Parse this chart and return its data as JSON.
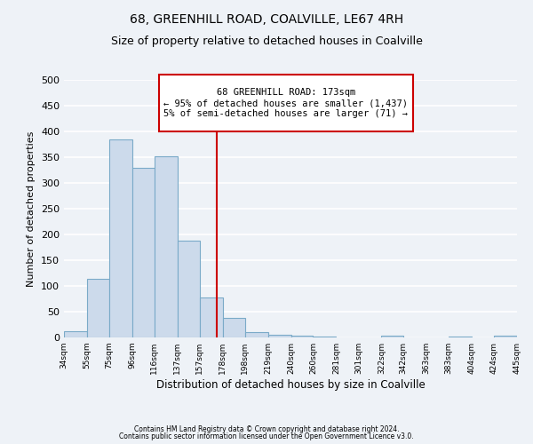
{
  "title": "68, GREENHILL ROAD, COALVILLE, LE67 4RH",
  "subtitle": "Size of property relative to detached houses in Coalville",
  "xlabel": "Distribution of detached houses by size in Coalville",
  "ylabel": "Number of detached properties",
  "bar_color": "#ccdaeb",
  "bar_edge_color": "#7aaac8",
  "bin_edges": [
    34,
    55,
    75,
    96,
    116,
    137,
    157,
    178,
    198,
    219,
    240,
    260,
    281,
    301,
    322,
    342,
    363,
    383,
    404,
    424,
    445
  ],
  "bar_heights": [
    12,
    114,
    384,
    330,
    352,
    188,
    77,
    38,
    11,
    6,
    4,
    1,
    0,
    0,
    3,
    0,
    0,
    2,
    0,
    3
  ],
  "vline_x": 173,
  "vline_color": "#cc0000",
  "annotation_title": "68 GREENHILL ROAD: 173sqm",
  "annotation_line1": "← 95% of detached houses are smaller (1,437)",
  "annotation_line2": "5% of semi-detached houses are larger (71) →",
  "annotation_box_edgecolor": "#cc0000",
  "annotation_box_facecolor": "#ffffff",
  "ytick_values": [
    0,
    50,
    100,
    150,
    200,
    250,
    300,
    350,
    400,
    450,
    500
  ],
  "ylim": [
    0,
    500
  ],
  "tick_labels": [
    "34sqm",
    "55sqm",
    "75sqm",
    "96sqm",
    "116sqm",
    "137sqm",
    "157sqm",
    "178sqm",
    "198sqm",
    "219sqm",
    "240sqm",
    "260sqm",
    "281sqm",
    "301sqm",
    "322sqm",
    "342sqm",
    "363sqm",
    "383sqm",
    "404sqm",
    "424sqm",
    "445sqm"
  ],
  "footer_line1": "Contains HM Land Registry data © Crown copyright and database right 2024.",
  "footer_line2": "Contains public sector information licensed under the Open Government Licence v3.0.",
  "background_color": "#eef2f7",
  "grid_color": "#ffffff",
  "title_fontsize": 10,
  "subtitle_fontsize": 9,
  "ylabel_fontsize": 8,
  "xlabel_fontsize": 8.5,
  "ytick_fontsize": 8,
  "xtick_fontsize": 6.5,
  "footer_fontsize": 5.5,
  "ann_fontsize": 7.5
}
